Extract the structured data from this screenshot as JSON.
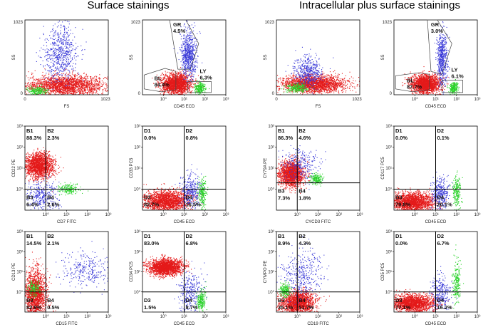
{
  "figure": {
    "left_title": "Surface stainings",
    "right_title": "Intracellular plus surface stainings",
    "colors": {
      "red": "#e41a1a",
      "blue": "#3a3ad8",
      "green": "#29d229",
      "axis": "#000000"
    }
  },
  "chart_data": [
    {
      "id": "p1",
      "type": "scatter",
      "xlabel": "FS",
      "ylabel": "SS",
      "xscale": "linear",
      "yscale": "linear",
      "xlim": [
        0,
        1023
      ],
      "ylim": [
        0,
        1023
      ],
      "x_ticks": [
        "0",
        "1023"
      ],
      "y_ticks": [
        "1023",
        "0"
      ],
      "gates": [],
      "quadrants": [],
      "populations": [
        {
          "color": "red",
          "n": 2200,
          "cx": 500,
          "cy": 130,
          "sx": 240,
          "sy": 70
        },
        {
          "color": "blue",
          "n": 650,
          "cx": 430,
          "cy": 560,
          "sx": 110,
          "sy": 190
        },
        {
          "color": "green",
          "n": 220,
          "cx": 150,
          "cy": 60,
          "sx": 60,
          "sy": 30
        }
      ]
    },
    {
      "id": "p2",
      "type": "scatter",
      "xlabel": "CD45 ECD",
      "ylabel": "SS",
      "xscale": "log",
      "yscale": "linear",
      "xlim": [
        0.1,
        1000
      ],
      "ylim": [
        0,
        1023
      ],
      "x_ticks": [
        "10⁰",
        "10¹",
        "10²",
        "10³"
      ],
      "y_ticks": [
        "1023",
        "0"
      ],
      "gates": [
        {
          "name": "BL",
          "value": "84.4%",
          "points": [
            [
              0.12,
              80
            ],
            [
              0.12,
              270
            ],
            [
              1.2,
              360
            ],
            [
              4,
              320
            ],
            [
              4,
              70
            ],
            [
              0.8,
              40
            ]
          ]
        },
        {
          "name": "GR",
          "value": "4.5%",
          "points": [
            [
              2,
              1023
            ],
            [
              12,
              1023
            ],
            [
              50,
              700
            ],
            [
              20,
              350
            ],
            [
              5,
              350
            ]
          ]
        },
        {
          "name": "LY",
          "value": "6.3%",
          "points": [
            [
              15,
              30
            ],
            [
              15,
              180
            ],
            [
              200,
              180
            ],
            [
              200,
              30
            ]
          ]
        }
      ],
      "quadrants": [],
      "populations": [
        {
          "color": "red",
          "n": 2000,
          "cx": 0.6,
          "cy": 150,
          "sx": 0.35,
          "sy": 70,
          "xlog": true
        },
        {
          "color": "blue",
          "n": 700,
          "cx": 1.2,
          "cy": 560,
          "sx": 0.18,
          "sy": 170,
          "xlog": true
        },
        {
          "color": "green",
          "n": 250,
          "cx": 1.75,
          "cy": 90,
          "sx": 0.13,
          "sy": 40,
          "xlog": true
        }
      ]
    },
    {
      "id": "p3",
      "type": "scatter",
      "xlabel": "FS",
      "ylabel": "SS",
      "xscale": "linear",
      "yscale": "linear",
      "xlim": [
        0,
        1023
      ],
      "ylim": [
        0,
        1023
      ],
      "x_ticks": [
        "0",
        "1023"
      ],
      "y_ticks": [
        "1023",
        "0"
      ],
      "gates": [],
      "quadrants": [],
      "populations": [
        {
          "color": "red",
          "n": 2200,
          "cx": 450,
          "cy": 150,
          "sx": 200,
          "sy": 60
        },
        {
          "color": "blue",
          "n": 500,
          "cx": 380,
          "cy": 320,
          "sx": 90,
          "sy": 100
        },
        {
          "color": "green",
          "n": 250,
          "cx": 250,
          "cy": 100,
          "sx": 70,
          "sy": 30
        }
      ]
    },
    {
      "id": "p4",
      "type": "scatter",
      "xlabel": "CD45 ECD",
      "ylabel": "SS",
      "xscale": "log",
      "yscale": "linear",
      "xlim": [
        0.1,
        1000
      ],
      "ylim": [
        0,
        1023
      ],
      "x_ticks": [
        "10⁰",
        "10¹",
        "10²",
        "10³"
      ],
      "y_ticks": [
        "1023",
        "0"
      ],
      "gates": [
        {
          "name": "BL",
          "value": "87.7%",
          "points": [
            [
              0.12,
              80
            ],
            [
              0.12,
              260
            ],
            [
              1.5,
              300
            ],
            [
              5,
              280
            ],
            [
              5,
              70
            ],
            [
              0.8,
              40
            ]
          ]
        },
        {
          "name": "GR",
          "value": "3.0%",
          "points": [
            [
              4,
              1023
            ],
            [
              12,
              1023
            ],
            [
              60,
              700
            ],
            [
              20,
              280
            ],
            [
              6,
              320
            ]
          ]
        },
        {
          "name": "LY",
          "value": "6.1%",
          "points": [
            [
              20,
              30
            ],
            [
              20,
              200
            ],
            [
              200,
              200
            ],
            [
              200,
              30
            ]
          ]
        }
      ],
      "quadrants": [],
      "populations": [
        {
          "color": "red",
          "n": 2000,
          "cx": 0.5,
          "cy": 150,
          "sx": 0.35,
          "sy": 65,
          "xlog": true
        },
        {
          "color": "blue",
          "n": 600,
          "cx": 1.3,
          "cy": 500,
          "sx": 0.12,
          "sy": 180,
          "xlog": true
        },
        {
          "color": "green",
          "n": 250,
          "cx": 1.85,
          "cy": 100,
          "sx": 0.1,
          "sy": 40,
          "xlog": true
        }
      ]
    },
    {
      "id": "p5",
      "type": "scatter",
      "xlabel": "CD7 FITC",
      "ylabel": "CD22 PE",
      "xscale": "log",
      "yscale": "log",
      "xlim": [
        0.1,
        1000
      ],
      "ylim": [
        0.1,
        1000
      ],
      "x_ticks": [
        "10⁰",
        "10¹",
        "10²",
        "10³"
      ],
      "y_ticks": [
        "10³",
        "10²",
        "10¹",
        "10⁰"
      ],
      "quadrant_x": 1,
      "quadrant_y": 1,
      "gates": [],
      "quadrants": [
        {
          "name": "B1",
          "value": "88.3%"
        },
        {
          "name": "B2",
          "value": "2.3%"
        },
        {
          "name": "B3",
          "value": "6.4%"
        },
        {
          "name": "B4",
          "value": "2.6%"
        }
      ],
      "populations": [
        {
          "color": "red",
          "n": 1800,
          "cx": -0.35,
          "cy": 1.15,
          "sx": 0.35,
          "sy": 0.3,
          "log": true
        },
        {
          "color": "blue",
          "n": 350,
          "cx": -0.2,
          "cy": -0.3,
          "sx": 0.4,
          "sy": 0.35,
          "log": true
        },
        {
          "color": "green",
          "n": 180,
          "cx": 1.1,
          "cy": 0.0,
          "sx": 0.25,
          "sy": 0.15,
          "log": true
        }
      ]
    },
    {
      "id": "p6",
      "type": "scatter",
      "xlabel": "CD45 ECD",
      "ylabel": "CD33 PC5",
      "xscale": "log",
      "yscale": "log",
      "xlim": [
        0.1,
        1000
      ],
      "ylim": [
        0.1,
        1000
      ],
      "x_ticks": [
        "10⁰",
        "10¹",
        "10²",
        "10³"
      ],
      "y_ticks": [
        "10³",
        "10²",
        "10¹",
        "10⁰"
      ],
      "quadrant_x": 10,
      "quadrant_y": 1,
      "gates": [],
      "quadrants": [
        {
          "name": "D1",
          "value": "0.0%"
        },
        {
          "name": "D2",
          "value": "0.8%"
        },
        {
          "name": "D3",
          "value": "82.7%"
        },
        {
          "name": "D4",
          "value": "16.5%"
        }
      ],
      "populations": [
        {
          "color": "red",
          "n": 2000,
          "cx": 0.1,
          "cy": -0.55,
          "sx": 0.55,
          "sy": 0.25,
          "log": true
        },
        {
          "color": "blue",
          "n": 350,
          "cx": 1.3,
          "cy": -0.1,
          "sx": 0.25,
          "sy": 0.4,
          "log": true
        },
        {
          "color": "green",
          "n": 220,
          "cx": 1.85,
          "cy": -0.2,
          "sx": 0.1,
          "sy": 0.35,
          "log": true
        }
      ]
    },
    {
      "id": "p7",
      "type": "scatter",
      "xlabel": "CYCD3 FITC",
      "ylabel": "CY79A PE",
      "xscale": "log",
      "yscale": "log",
      "xlim": [
        0.1,
        1000
      ],
      "ylim": [
        0.1,
        1000
      ],
      "x_ticks": [
        "10⁰",
        "10¹",
        "10²",
        "10³"
      ],
      "y_ticks": [
        "10³",
        "10²",
        "10¹",
        "10⁰"
      ],
      "quadrant_x": 1,
      "quadrant_y": 2,
      "gates": [],
      "quadrants": [
        {
          "name": "B1",
          "value": "86.3%"
        },
        {
          "name": "B2",
          "value": "4.6%"
        },
        {
          "name": "B3",
          "value": "7.3%"
        },
        {
          "name": "B4",
          "value": "1.8%"
        }
      ],
      "populations": [
        {
          "color": "red",
          "n": 1800,
          "cx": -0.3,
          "cy": 0.75,
          "sx": 0.3,
          "sy": 0.3,
          "log": true
        },
        {
          "color": "blue",
          "n": 300,
          "cx": 0.1,
          "cy": 1.2,
          "sx": 0.5,
          "sy": 0.4,
          "log": true
        },
        {
          "color": "green",
          "n": 180,
          "cx": 0.9,
          "cy": 0.5,
          "sx": 0.15,
          "sy": 0.12,
          "log": true
        }
      ]
    },
    {
      "id": "p8",
      "type": "scatter",
      "xlabel": "CD45 ECD",
      "ylabel": "CD117 PC5",
      "xscale": "log",
      "yscale": "log",
      "xlim": [
        0.1,
        1000
      ],
      "ylim": [
        0.1,
        1000
      ],
      "x_ticks": [
        "10⁰",
        "10¹",
        "10²",
        "10³"
      ],
      "y_ticks": [
        "10³",
        "10²",
        "10¹",
        "10⁰"
      ],
      "quadrant_x": 10,
      "quadrant_y": 1,
      "gates": [],
      "quadrants": [
        {
          "name": "D1",
          "value": "0.0%"
        },
        {
          "name": "D2",
          "value": "0.1%"
        },
        {
          "name": "D3",
          "value": "79.8%"
        },
        {
          "name": "D4",
          "value": "20.1%"
        }
      ],
      "populations": [
        {
          "color": "red",
          "n": 2000,
          "cx": -0.1,
          "cy": -0.6,
          "sx": 0.5,
          "sy": 0.22,
          "log": true
        },
        {
          "color": "blue",
          "n": 350,
          "cx": 1.2,
          "cy": -0.2,
          "sx": 0.2,
          "sy": 0.4,
          "log": true
        },
        {
          "color": "green",
          "n": 220,
          "cx": 2.0,
          "cy": -0.1,
          "sx": 0.1,
          "sy": 0.4,
          "log": true
        }
      ]
    },
    {
      "id": "p9",
      "type": "scatter",
      "xlabel": "CD15 FITC",
      "ylabel": "CD13 PE",
      "xscale": "log",
      "yscale": "log",
      "xlim": [
        0.1,
        1000
      ],
      "ylim": [
        0.1,
        1000
      ],
      "x_ticks": [
        "10⁰",
        "10¹",
        "10²",
        "10³"
      ],
      "y_ticks": [
        "10³",
        "10²",
        "10¹",
        "10⁰"
      ],
      "quadrant_x": 1,
      "quadrant_y": 1,
      "gates": [],
      "quadrants": [
        {
          "name": "B1",
          "value": "14.5%"
        },
        {
          "name": "B2",
          "value": "2.1%"
        },
        {
          "name": "B3",
          "value": "82.9%"
        },
        {
          "name": "B4",
          "value": "0.5%"
        }
      ],
      "populations": [
        {
          "color": "red",
          "n": 1800,
          "cx": -0.5,
          "cy": -0.1,
          "sx": 0.25,
          "sy": 0.6,
          "log": true
        },
        {
          "color": "blue",
          "n": 300,
          "cx": 2.0,
          "cy": 1.1,
          "sx": 0.6,
          "sy": 0.45,
          "log": true
        },
        {
          "color": "green",
          "n": 150,
          "cx": -0.6,
          "cy": 0.2,
          "sx": 0.15,
          "sy": 0.2,
          "log": true
        }
      ]
    },
    {
      "id": "p10",
      "type": "scatter",
      "xlabel": "CD45 ECD",
      "ylabel": "CD34 PC5",
      "xscale": "log",
      "yscale": "log",
      "xlim": [
        0.1,
        1000
      ],
      "ylim": [
        0.1,
        1000
      ],
      "x_ticks": [
        "10⁰",
        "10¹",
        "10²",
        "10³"
      ],
      "y_ticks": [
        "10³",
        "10²",
        "10¹",
        "10⁰"
      ],
      "quadrant_x": 10,
      "quadrant_y": 1,
      "gates": [],
      "quadrants": [
        {
          "name": "D1",
          "value": "83.0%"
        },
        {
          "name": "D2",
          "value": "6.8%"
        },
        {
          "name": "D3",
          "value": "1.5%"
        },
        {
          "name": "D4",
          "value": "8.7%"
        }
      ],
      "populations": [
        {
          "color": "red",
          "n": 2000,
          "cx": 0.1,
          "cy": 1.25,
          "sx": 0.4,
          "sy": 0.2,
          "log": true
        },
        {
          "color": "blue",
          "n": 300,
          "cx": 1.3,
          "cy": 0.0,
          "sx": 0.3,
          "sy": 0.5,
          "log": true
        },
        {
          "color": "green",
          "n": 220,
          "cx": 1.8,
          "cy": -0.4,
          "sx": 0.1,
          "sy": 0.25,
          "log": true
        }
      ]
    },
    {
      "id": "p11",
      "type": "scatter",
      "xlabel": "CD19 FITC",
      "ylabel": "CYMPO PE",
      "xscale": "log",
      "yscale": "log",
      "xlim": [
        0.1,
        1000
      ],
      "ylim": [
        0.1,
        1000
      ],
      "x_ticks": [
        "10⁰",
        "10¹",
        "10²",
        "10³"
      ],
      "y_ticks": [
        "10³",
        "10²",
        "10¹",
        "10⁰"
      ],
      "quadrant_x": 1,
      "quadrant_y": 1,
      "gates": [],
      "quadrants": [
        {
          "name": "B1",
          "value": "8.9%"
        },
        {
          "name": "B2",
          "value": "4.3%"
        },
        {
          "name": "B3",
          "value": "35.1%"
        },
        {
          "name": "B4",
          "value": "51.7%"
        }
      ],
      "populations": [
        {
          "color": "red",
          "n": 1800,
          "cx": 0.0,
          "cy": -0.5,
          "sx": 0.4,
          "sy": 0.3,
          "log": true
        },
        {
          "color": "blue",
          "n": 400,
          "cx": 0.2,
          "cy": 0.9,
          "sx": 0.5,
          "sy": 0.6,
          "log": true
        },
        {
          "color": "green",
          "n": 200,
          "cx": -0.6,
          "cy": 0.1,
          "sx": 0.12,
          "sy": 0.15,
          "log": true
        }
      ]
    },
    {
      "id": "p12",
      "type": "scatter",
      "xlabel": "CD45 ECD",
      "ylabel": "CD5 PC5",
      "xscale": "log",
      "yscale": "log",
      "xlim": [
        0.1,
        1000
      ],
      "ylim": [
        0.1,
        1000
      ],
      "x_ticks": [
        "10⁰",
        "10¹",
        "10²",
        "10³"
      ],
      "y_ticks": [
        "10³",
        "10²",
        "10¹",
        "10⁰"
      ],
      "quadrant_x": 10,
      "quadrant_y": 1,
      "gates": [],
      "quadrants": [
        {
          "name": "D1",
          "value": "0.0%"
        },
        {
          "name": "D2",
          "value": "6.7%"
        },
        {
          "name": "D3",
          "value": "77.1%"
        },
        {
          "name": "D4",
          "value": "16.2%"
        }
      ],
      "populations": [
        {
          "color": "red",
          "n": 2000,
          "cx": -0.1,
          "cy": -0.55,
          "sx": 0.5,
          "sy": 0.22,
          "log": true
        },
        {
          "color": "blue",
          "n": 300,
          "cx": 1.2,
          "cy": -0.1,
          "sx": 0.25,
          "sy": 0.45,
          "log": true
        },
        {
          "color": "green",
          "n": 220,
          "cx": 2.0,
          "cy": 0.5,
          "sx": 0.1,
          "sy": 0.5,
          "log": true
        }
      ]
    }
  ]
}
